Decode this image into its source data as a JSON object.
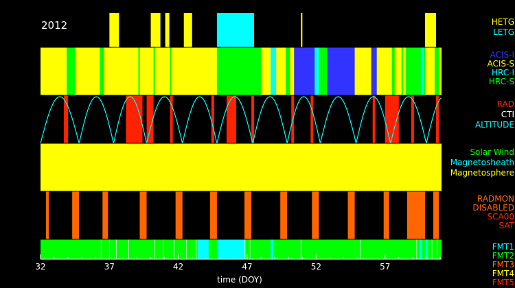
{
  "chart_data": {
    "type": "timeline",
    "year": "2012",
    "xlabel": "time (DOY)",
    "xlim": [
      32,
      61.1
    ],
    "x_ticks": [
      32,
      37,
      42,
      47,
      52,
      57
    ],
    "panels": [
      {
        "id": "grating",
        "background": "#000000",
        "legend": [
          {
            "label": "HETG",
            "color": "#ffff00"
          },
          {
            "label": "LETG",
            "color": "#00ffff"
          }
        ],
        "segments": [
          {
            "start": 37.0,
            "end": 37.7,
            "color": "#ffff00"
          },
          {
            "start": 40.0,
            "end": 40.7,
            "color": "#ffff00"
          },
          {
            "start": 41.05,
            "end": 41.35,
            "color": "#ffff00"
          },
          {
            "start": 42.4,
            "end": 43.0,
            "color": "#ffff00"
          },
          {
            "start": 44.8,
            "end": 47.5,
            "color": "#00ffff"
          },
          {
            "start": 50.9,
            "end": 51.0,
            "color": "#ffff00"
          },
          {
            "start": 59.9,
            "end": 60.7,
            "color": "#ffff00"
          }
        ]
      },
      {
        "id": "instrument",
        "background": "#ffff00",
        "legend": [
          {
            "label": "ACIS-I",
            "color": "#3333ff"
          },
          {
            "label": "ACIS-S",
            "color": "#ffff00"
          },
          {
            "label": "HRC-I",
            "color": "#00ffff"
          },
          {
            "label": "HRC-S",
            "color": "#00ff00"
          }
        ],
        "segments": [
          {
            "start": 33.9,
            "end": 34.5,
            "color": "#00ff00"
          },
          {
            "start": 36.3,
            "end": 36.6,
            "color": "#00ff00"
          },
          {
            "start": 39.1,
            "end": 39.2,
            "color": "#00ff00"
          },
          {
            "start": 40.2,
            "end": 40.3,
            "color": "#00ff00"
          },
          {
            "start": 41.4,
            "end": 41.5,
            "color": "#00ff00"
          },
          {
            "start": 44.8,
            "end": 48.0,
            "color": "#00ff00"
          },
          {
            "start": 48.7,
            "end": 49.1,
            "color": "#00ffff"
          },
          {
            "start": 49.8,
            "end": 50.1,
            "color": "#00ff00"
          },
          {
            "start": 50.4,
            "end": 51.9,
            "color": "#3333ff"
          },
          {
            "start": 51.9,
            "end": 52.2,
            "color": "#00ffff"
          },
          {
            "start": 52.2,
            "end": 52.8,
            "color": "#00ff00"
          },
          {
            "start": 52.8,
            "end": 54.8,
            "color": "#3333ff"
          },
          {
            "start": 56.0,
            "end": 56.4,
            "color": "#3333ff"
          },
          {
            "start": 57.5,
            "end": 57.7,
            "color": "#00ff00"
          },
          {
            "start": 58.2,
            "end": 58.3,
            "color": "#00ff00"
          },
          {
            "start": 58.5,
            "end": 59.9,
            "color": "#00ff00"
          },
          {
            "start": 59.6,
            "end": 59.8,
            "color": "#00ffff"
          },
          {
            "start": 60.6,
            "end": 60.9,
            "color": "#00ff00"
          }
        ]
      },
      {
        "id": "radiation",
        "background": "#000000",
        "legend": [
          {
            "label": "RAD",
            "color": "#ff2200"
          },
          {
            "label": "CTI",
            "color": "#ffffff"
          },
          {
            "label": "ALTITUDE",
            "color": "#00ffff"
          }
        ],
        "segments": [
          {
            "start": 33.7,
            "end": 34.0,
            "color": "#ff2200"
          },
          {
            "start": 38.2,
            "end": 39.4,
            "color": "#ff2200"
          },
          {
            "start": 39.7,
            "end": 40.2,
            "color": "#ff2200"
          },
          {
            "start": 41.4,
            "end": 41.6,
            "color": "#ff2200"
          },
          {
            "start": 44.4,
            "end": 44.6,
            "color": "#ff2200"
          },
          {
            "start": 45.5,
            "end": 46.2,
            "color": "#ff2200"
          },
          {
            "start": 47.3,
            "end": 47.5,
            "color": "#ff2200"
          },
          {
            "start": 50.2,
            "end": 50.4,
            "color": "#ff2200"
          },
          {
            "start": 51.6,
            "end": 51.8,
            "color": "#ff2200"
          },
          {
            "start": 56.1,
            "end": 56.3,
            "color": "#ff2200"
          },
          {
            "start": 57.0,
            "end": 58.0,
            "color": "#ff2200"
          },
          {
            "start": 58.9,
            "end": 59.1,
            "color": "#ff2200"
          },
          {
            "start": 60.7,
            "end": 60.9,
            "color": "#ff2200"
          }
        ],
        "altitude_perigees": [
          32.0,
          34.8,
          37.3,
          39.7,
          42.3,
          44.8,
          47.4,
          49.9,
          52.3,
          54.9,
          57.4,
          60.0,
          62.5
        ]
      },
      {
        "id": "environment",
        "background": "#ffff00",
        "legend": [
          {
            "label": "Solar Wind",
            "color": "#00ff00"
          },
          {
            "label": "Magnetosheath",
            "color": "#00ffff"
          },
          {
            "label": "Magnetosphere",
            "color": "#ffff00"
          }
        ],
        "segments": []
      },
      {
        "id": "radmon",
        "background": "#000000",
        "legend": [
          {
            "label": "RADMON",
            "color": "#ff6600"
          },
          {
            "label": "DISABLED",
            "color": "#ff6600"
          },
          {
            "label": "SCA00",
            "color": "#ff2200"
          },
          {
            "label": "SAT",
            "color": "#ff2200"
          }
        ],
        "segments": [
          {
            "start": 32.4,
            "end": 32.6,
            "color": "#ff6600"
          },
          {
            "start": 34.3,
            "end": 34.8,
            "color": "#ff6600"
          },
          {
            "start": 36.5,
            "end": 36.9,
            "color": "#ff6600"
          },
          {
            "start": 39.2,
            "end": 39.7,
            "color": "#ff6600"
          },
          {
            "start": 41.8,
            "end": 42.3,
            "color": "#ff6600"
          },
          {
            "start": 44.3,
            "end": 44.8,
            "color": "#ff6600"
          },
          {
            "start": 46.8,
            "end": 47.3,
            "color": "#ff6600"
          },
          {
            "start": 49.4,
            "end": 49.9,
            "color": "#ff6600"
          },
          {
            "start": 51.7,
            "end": 52.2,
            "color": "#ff6600"
          },
          {
            "start": 54.3,
            "end": 54.8,
            "color": "#ff6600"
          },
          {
            "start": 56.9,
            "end": 57.3,
            "color": "#ff6600"
          },
          {
            "start": 58.6,
            "end": 59.9,
            "color": "#ff6600"
          },
          {
            "start": 60.5,
            "end": 60.9,
            "color": "#ff6600"
          }
        ]
      },
      {
        "id": "format",
        "background": "#00ff00",
        "legend": [
          {
            "label": "FMT1",
            "color": "#00ffff"
          },
          {
            "label": "FMT2",
            "color": "#00ff00"
          },
          {
            "label": "FMT3",
            "color": "#ff6600"
          },
          {
            "label": "FMT4",
            "color": "#ffff00"
          },
          {
            "label": "FMT5",
            "color": "#ff2200"
          }
        ],
        "segments": [
          {
            "start": 43.4,
            "end": 44.2,
            "color": "#00ffff"
          },
          {
            "start": 44.8,
            "end": 46.9,
            "color": "#00ffff"
          },
          {
            "start": 48.7,
            "end": 48.9,
            "color": "#00ffff"
          },
          {
            "start": 59.5,
            "end": 59.7,
            "color": "#00ffff"
          },
          {
            "start": 59.9,
            "end": 60.1,
            "color": "#00ffff"
          }
        ],
        "tick_marks": [
          36.4,
          37.0,
          37.5,
          38.4,
          40.3,
          40.9,
          41.7,
          42.6,
          43.3,
          46.8,
          47.2,
          50.9,
          55.2,
          59.3,
          60.4,
          60.8
        ],
        "tick_color": "#ccffcc"
      }
    ]
  }
}
